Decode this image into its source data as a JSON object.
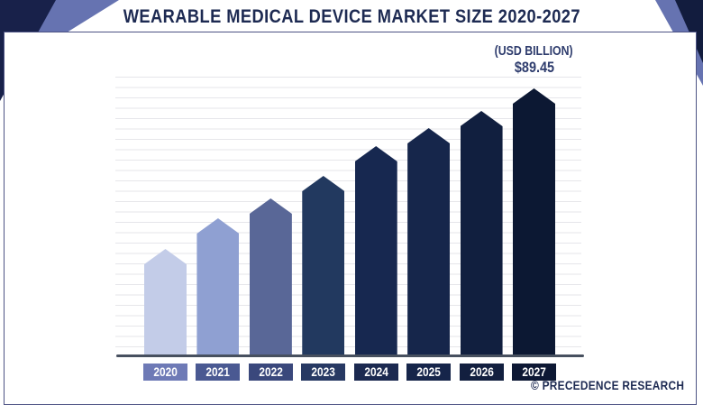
{
  "title": "WEARABLE MEDICAL DEVICE MARKET SIZE 2020-2027",
  "callout": {
    "unit_label": "(USD BILLION)",
    "value_label": "$89.45"
  },
  "watermark": "© PRECEDENCE RESEARCH",
  "colors": {
    "title_text": "#1d2a52",
    "callout_text": "#2e3c6d",
    "axis_line": "#47505f",
    "gridline": "#e6e6ea",
    "chart_border": "#4d5384",
    "corner_dark": "#18214a",
    "corner_light": "#6673b1"
  },
  "chart_data": {
    "type": "bar",
    "title": "Wearable Medical Device Market Size 2020-2027",
    "unit": "USD Billion",
    "categories": [
      "2020",
      "2021",
      "2022",
      "2023",
      "2024",
      "2025",
      "2026",
      "2027"
    ],
    "values": [
      35.8,
      46.2,
      52.8,
      60.3,
      70.2,
      76.3,
      82.0,
      89.45
    ],
    "labeled_points": [
      {
        "category": "2027",
        "label": "$89.45"
      }
    ],
    "ylim": [
      0,
      92
    ],
    "grid": "horizontal",
    "legend": "none",
    "bar_shape": "pentagon-pointed-top",
    "bar_colors": [
      "#c3cce8",
      "#8fa0d2",
      "#596797",
      "#22395f",
      "#172850",
      "#16264b",
      "#111f3f",
      "#0c1833"
    ],
    "axis_box_colors": [
      "#6e7ab6",
      "#4a5992",
      "#3a487c",
      "#273963",
      "#1b2950",
      "#16254a",
      "#121f3f",
      "#0d1834"
    ]
  }
}
